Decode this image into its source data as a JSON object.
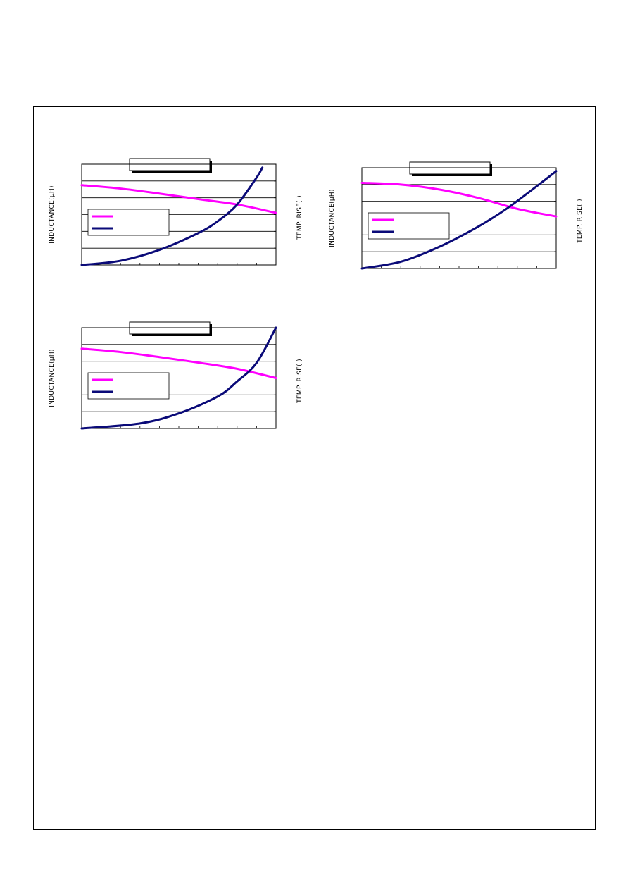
{
  "colors": {
    "inductance": "#ff00ff",
    "temp_rise": "#0a0a78",
    "frame": "#000000",
    "grid": "#000000"
  },
  "chart_data": [
    {
      "type": "line",
      "title": "",
      "ylabel": "INDUCTANCE(μH)",
      "y2label": "TEMP. RISE(   )",
      "gridlines": 6,
      "legend_placement": "center-left",
      "xlim": [
        0,
        10
      ],
      "ylim": [
        0,
        6
      ],
      "series": [
        {
          "key": "inductance",
          "legend": "",
          "values": [
            [
              0,
              4.75
            ],
            [
              2,
              4.55
            ],
            [
              4,
              4.25
            ],
            [
              6,
              3.92
            ],
            [
              8,
              3.6
            ],
            [
              10,
              3.1
            ]
          ]
        },
        {
          "key": "temp_rise",
          "legend": "",
          "values": [
            [
              0,
              0
            ],
            [
              2,
              0.25
            ],
            [
              4,
              0.9
            ],
            [
              6,
              1.9
            ],
            [
              7,
              2.6
            ],
            [
              8,
              3.6
            ],
            [
              9,
              5.2
            ],
            [
              9.3,
              5.8
            ]
          ]
        }
      ]
    },
    {
      "type": "line",
      "title": "",
      "ylabel": "INDUCTANCE(μH)",
      "y2label": "TEMP. RISE(   )",
      "gridlines": 6,
      "legend_placement": "center-left",
      "xlim": [
        0,
        10
      ],
      "ylim": [
        0,
        6
      ],
      "series": [
        {
          "key": "inductance",
          "legend": "",
          "values": [
            [
              0,
              5.1
            ],
            [
              2,
              5.0
            ],
            [
              4,
              4.7
            ],
            [
              6,
              4.2
            ],
            [
              8,
              3.55
            ],
            [
              10,
              3.1
            ]
          ]
        },
        {
          "key": "temp_rise",
          "legend": "",
          "values": [
            [
              0,
              0
            ],
            [
              2,
              0.4
            ],
            [
              4,
              1.3
            ],
            [
              6,
              2.5
            ],
            [
              7.5,
              3.6
            ],
            [
              9,
              4.9
            ],
            [
              10,
              5.8
            ]
          ]
        }
      ]
    },
    {
      "type": "line",
      "title": "",
      "ylabel": "INDUCTANCE(μH)",
      "y2label": "TEMP. RISE(   )",
      "gridlines": 6,
      "legend_placement": "center-left",
      "xlim": [
        0,
        10
      ],
      "ylim": [
        0,
        6
      ],
      "series": [
        {
          "key": "inductance",
          "legend": "",
          "values": [
            [
              0,
              4.75
            ],
            [
              2,
              4.55
            ],
            [
              4,
              4.25
            ],
            [
              6,
              3.92
            ],
            [
              8,
              3.55
            ],
            [
              10,
              3.0
            ]
          ]
        },
        {
          "key": "temp_rise",
          "legend": "",
          "values": [
            [
              0,
              0
            ],
            [
              3,
              0.3
            ],
            [
              5,
              0.9
            ],
            [
              7,
              1.9
            ],
            [
              8,
              2.8
            ],
            [
              9,
              3.9
            ],
            [
              10,
              6.0
            ]
          ]
        }
      ]
    }
  ]
}
